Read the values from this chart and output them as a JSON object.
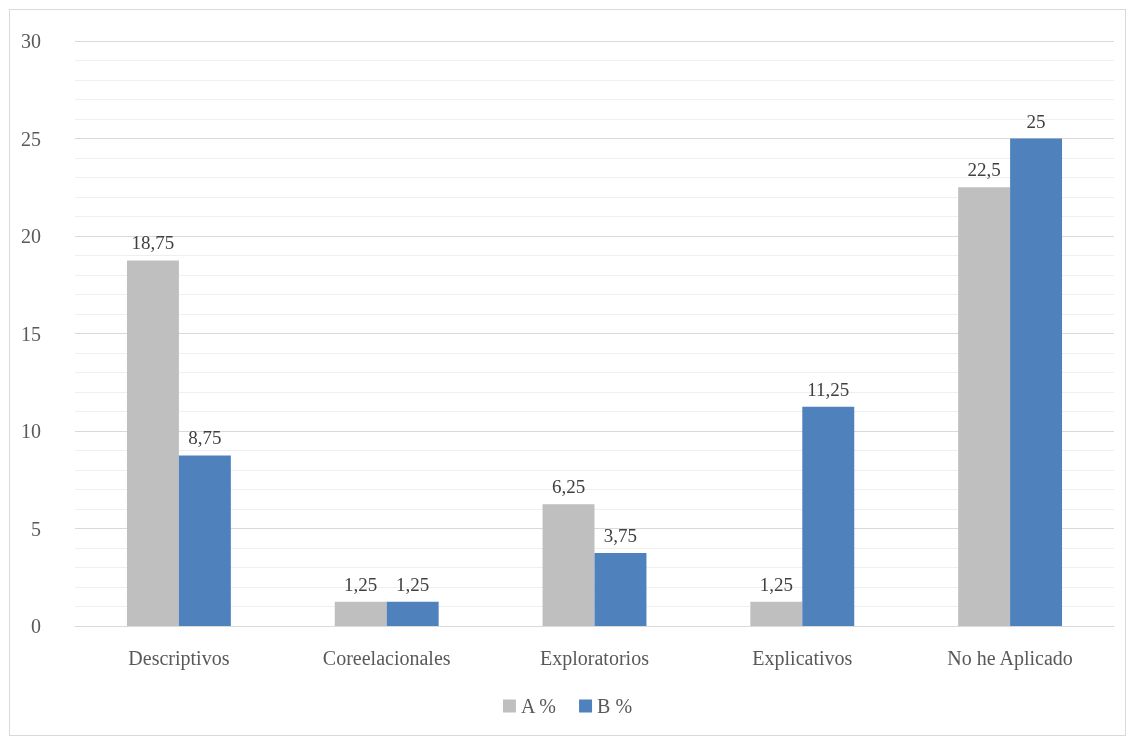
{
  "chart_data": {
    "type": "bar",
    "categories": [
      "Descriptivos",
      "Coreelacionales",
      "Exploratorios",
      "Explicativos",
      "No he Aplicado"
    ],
    "series": [
      {
        "name": "A %",
        "color": "#bfbfbf",
        "values": [
          18.75,
          1.25,
          6.25,
          1.25,
          22.5
        ],
        "value_labels": [
          "18,75",
          "1,25",
          "6,25",
          "1,25",
          "22,5"
        ]
      },
      {
        "name": "B %",
        "color": "#4f81bd",
        "values": [
          8.75,
          1.25,
          3.75,
          11.25,
          25
        ],
        "value_labels": [
          "8,75",
          "1,25",
          "3,75",
          "11,25",
          "25"
        ]
      }
    ],
    "ylim": [
      0,
      30
    ],
    "yticks": [
      0,
      {
        "value": 1,
        "label": null
      },
      {
        "value": 2,
        "label": null
      },
      {
        "value": 3,
        "label": null
      },
      {
        "value": 4,
        "label": null
      },
      5,
      {
        "value": 6,
        "label": null
      },
      {
        "value": 7,
        "label": null
      },
      {
        "value": 8,
        "label": null
      },
      {
        "value": 9,
        "label": null
      },
      10,
      {
        "value": 11,
        "label": null
      },
      {
        "value": 12,
        "label": null
      },
      {
        "value": 13,
        "label": null
      },
      {
        "value": 14,
        "label": null
      },
      15,
      {
        "value": 16,
        "label": null
      },
      {
        "value": 17,
        "label": null
      },
      {
        "value": 18,
        "label": null
      },
      {
        "value": 19,
        "label": null
      },
      20,
      {
        "value": 21,
        "label": null
      },
      {
        "value": 22,
        "label": null
      },
      {
        "value": 23,
        "label": null
      },
      {
        "value": 24,
        "label": null
      },
      25,
      {
        "value": 26,
        "label": null
      },
      {
        "value": 27,
        "label": null
      },
      {
        "value": 28,
        "label": null
      },
      {
        "value": 29,
        "label": null
      },
      30
    ],
    "grid": "y",
    "legend": "bottom"
  }
}
